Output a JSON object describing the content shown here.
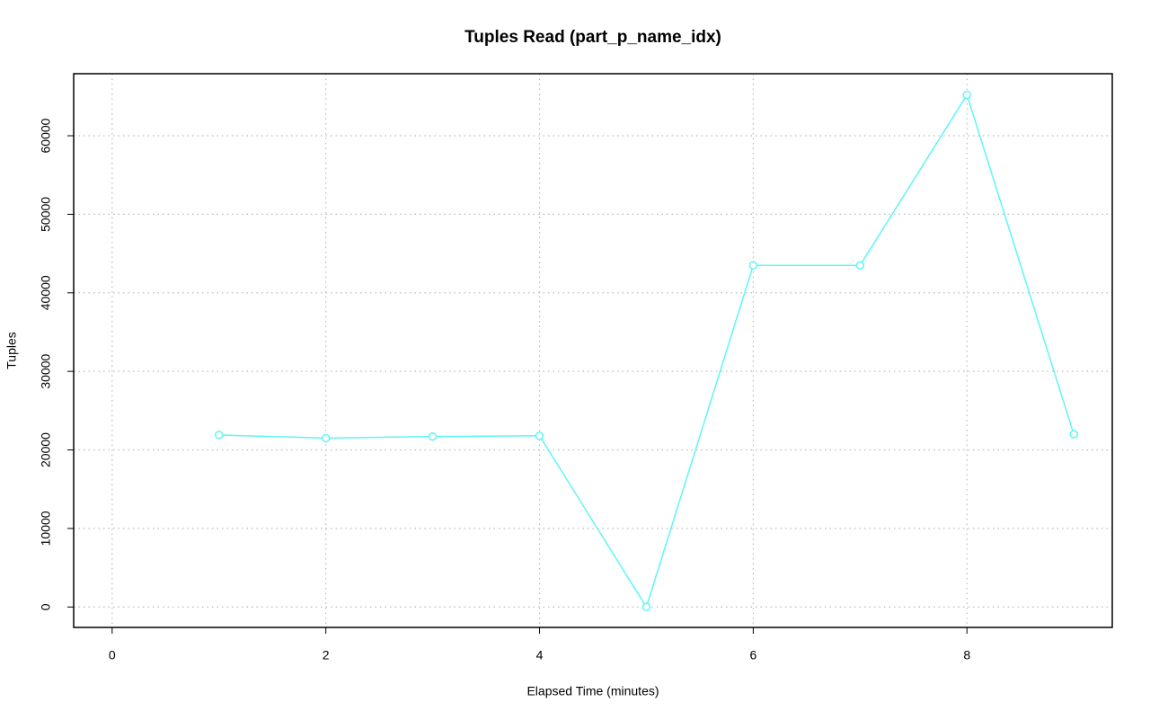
{
  "chart_data": {
    "type": "line",
    "title": "Tuples Read (part_p_name_idx)",
    "x_label": "Elapsed Time (minutes)",
    "y_label": "Tuples",
    "x": [
      1,
      2,
      3,
      4,
      5,
      6,
      7,
      8,
      9
    ],
    "series": [
      {
        "color": "#5ff5f5",
        "values": [
          21900,
          21500,
          21700,
          21800,
          0,
          43500,
          43500,
          65200,
          22000
        ]
      }
    ],
    "xlim": [
      -0.36,
      9.36
    ],
    "xticks": [
      0,
      2,
      4,
      6,
      8
    ],
    "ylim": [
      -2600,
      67900
    ],
    "yticks": [
      0,
      10000,
      20000,
      30000,
      40000,
      50000,
      60000
    ],
    "grid": true,
    "markers": true
  }
}
